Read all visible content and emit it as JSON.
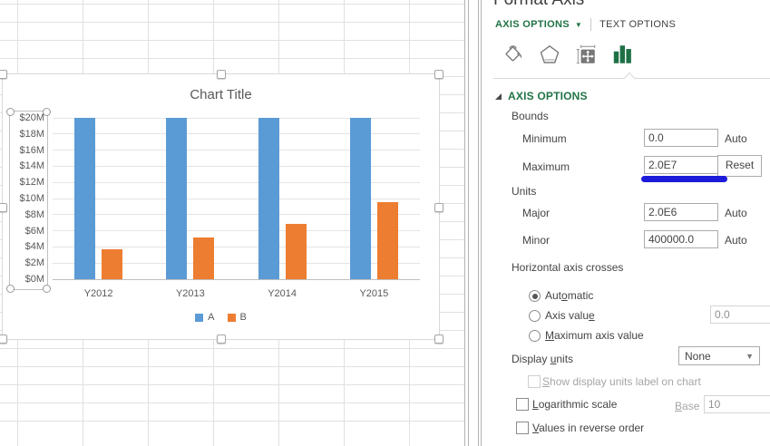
{
  "chart_data": {
    "type": "bar",
    "title": "Chart Title",
    "categories": [
      "Y2012",
      "Y2013",
      "Y2014",
      "Y2015"
    ],
    "series": [
      {
        "name": "A",
        "color": "#5B9BD5",
        "values": [
          20000000,
          20000000,
          20000000,
          20000000
        ]
      },
      {
        "name": "B",
        "color": "#ED7D31",
        "values": [
          3700000,
          5200000,
          6800000,
          9600000
        ]
      }
    ],
    "ylim": [
      0,
      20000000
    ],
    "y_tick_step": 2000000,
    "y_tick_labels_bottom_up": [
      "$0M",
      "$2M",
      "$4M",
      "$6M",
      "$8M",
      "$10M",
      "$12M",
      "$14M",
      "$16M",
      "$18M",
      "$20M"
    ],
    "gridlines": true,
    "legend_position": "bottom",
    "note": "Series A bars reach the 2.0E7 axis maximum (tops clipped at $20M); vertical axis is selected"
  },
  "panel": {
    "title": "Format Axis",
    "tabs": {
      "axis_options": "AXIS OPTIONS",
      "text_options": "TEXT OPTIONS"
    },
    "icons": [
      {
        "name": "fill-line-icon",
        "selected": false
      },
      {
        "name": "effects-icon",
        "selected": false
      },
      {
        "name": "size-properties-icon",
        "selected": false
      },
      {
        "name": "axis-chart-icon",
        "selected": true
      }
    ],
    "section_header": "AXIS OPTIONS",
    "auto_label": "Auto",
    "bounds": {
      "label": "Bounds",
      "minimum_label": "Minimum",
      "minimum_value": "0.0",
      "maximum_label": "Maximum",
      "maximum_value": "2.0E7",
      "reset_label": "Reset"
    },
    "annotation_color": "#1b1bd9",
    "units": {
      "label": "Units",
      "major_label": "Major",
      "major_value": "2.0E6",
      "minor_label": "Minor",
      "minor_value": "400000.0"
    },
    "crosses": {
      "label": "Horizontal axis crosses",
      "automatic": {
        "text": "Automatic",
        "accel": 3
      },
      "axis_value": {
        "text": "Axis value",
        "accel": 9
      },
      "axis_value_input": "0.0",
      "maximum_axis_value": {
        "text": "Maximum axis value",
        "accel": 0
      },
      "selected": "Automatic"
    },
    "display_units": {
      "label": {
        "text": "Display units",
        "accel": 8
      },
      "value": "None",
      "show_label": {
        "text": "Show display units label on chart",
        "accel": 0
      },
      "show_label_checked": false
    },
    "logarithmic": {
      "label": {
        "text": "Logarithmic scale",
        "accel": 0
      },
      "checked": false,
      "base_label": {
        "text": "Base",
        "accel": 0
      },
      "base_value": "10"
    },
    "reverse": {
      "label": {
        "text": "Values in reverse order",
        "accel": 0
      },
      "checked": false
    },
    "accent_green": "#217346"
  }
}
